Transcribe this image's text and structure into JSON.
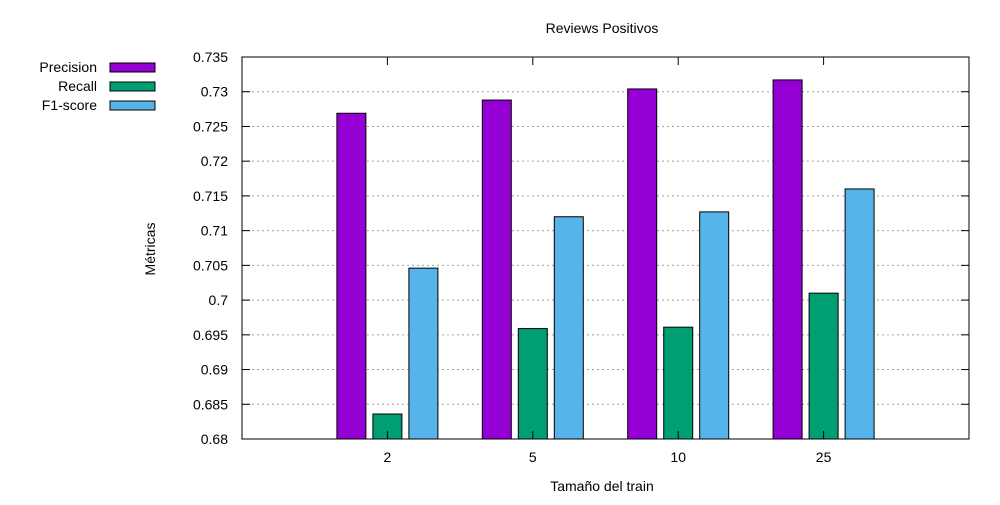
{
  "chart_data": {
    "type": "bar",
    "title": "Reviews Positivos",
    "xlabel": "Tamaño del train",
    "ylabel": "Métricas",
    "categories": [
      "2",
      "5",
      "10",
      "25"
    ],
    "series": [
      {
        "name": "Precision",
        "color": "#9400d3",
        "values": [
          0.7269,
          0.7288,
          0.7304,
          0.7317
        ]
      },
      {
        "name": "Recall",
        "color": "#009e73",
        "values": [
          0.6836,
          0.6959,
          0.6961,
          0.701
        ]
      },
      {
        "name": "F1-score",
        "color": "#56b4e9",
        "values": [
          0.7046,
          0.712,
          0.7127,
          0.716
        ]
      }
    ],
    "ylim": [
      0.68,
      0.735
    ],
    "yticks": [
      "0.68",
      "0.685",
      "0.69",
      "0.695",
      "0.7",
      "0.705",
      "0.71",
      "0.715",
      "0.72",
      "0.725",
      "0.73",
      "0.735"
    ],
    "grid": true,
    "legend_position": "top-left outside"
  }
}
